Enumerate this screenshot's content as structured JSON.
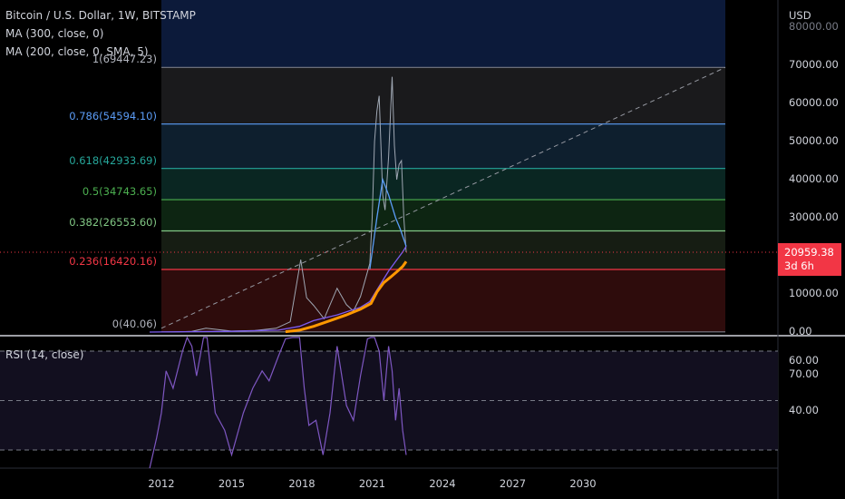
{
  "header": {
    "symbol_line": "Bitcoin / U.S. Dollar, 1W, BITSTAMP",
    "indicator_1": "MA (300, close, 0)",
    "indicator_2": "MA (200, close, 0, SMA, 5)"
  },
  "price_axis": {
    "currency": "USD",
    "ticks": [
      "80000.00",
      "70000.00",
      "60000.00",
      "50000.00",
      "40000.00",
      "30000.00",
      "20000.00",
      "10000.00",
      "0.00"
    ],
    "tick_values": [
      80000,
      70000,
      60000,
      50000,
      40000,
      30000,
      20000,
      10000,
      0
    ]
  },
  "last_price": {
    "value": "20959.38",
    "countdown": "3d 6h"
  },
  "fib_levels": [
    {
      "label": "1(69447.23)",
      "value": 69447.23,
      "color": "#787b86",
      "fill": "#1a1a1c"
    },
    {
      "label": "0.786(54594.10)",
      "value": 54594.1,
      "color": "#5b9cf6",
      "fill": "#0e1f2e"
    },
    {
      "label": "0.618(42933.69)",
      "value": 42933.69,
      "color": "#26a69a",
      "fill": "#0a2622"
    },
    {
      "label": "0.5(34743.65)",
      "value": 34743.65,
      "color": "#4caf50",
      "fill": "#0d2512"
    },
    {
      "label": "0.382(26553.60)",
      "value": 26553.6,
      "color": "#81c784",
      "fill": "#161d13"
    },
    {
      "label": "0.236(16420.16)",
      "value": 16420.16,
      "color": "#f23645",
      "fill": "#2e0c0c"
    },
    {
      "label": "0(40.06)",
      "value": 40.06,
      "color": "#787b86",
      "fill": ""
    }
  ],
  "rsi": {
    "label": "RSI (14, close)",
    "ticks": [
      "60.00",
      "40.00"
    ],
    "tick_values": [
      60,
      40
    ],
    "bands": [
      70,
      50,
      30
    ]
  },
  "time_axis": {
    "labels": [
      "2012",
      "2015",
      "2018",
      "2021",
      "2024",
      "2027",
      "2030"
    ],
    "years": [
      2012,
      2015,
      2018,
      2021,
      2024,
      2027,
      2030
    ]
  },
  "chart_data": {
    "type": "line",
    "title": "Bitcoin / U.S. Dollar, 1W, BITSTAMP",
    "ylim": [
      0,
      85000
    ],
    "xlim": [
      2011.0,
      2031.0
    ],
    "series": [
      {
        "name": "",
        "color": "#9fa7b3",
        "x": [
          2011.5,
          2012.5,
          2013.3,
          2013.9,
          2014.5,
          2015.0,
          2016.0,
          2016.9,
          2017.5,
          2017.95,
          2018.2,
          2018.5,
          2018.95,
          2019.5,
          2019.9,
          2020.2,
          2020.5,
          2020.9,
          2021.0,
          2021.1,
          2021.2,
          2021.3,
          2021.45,
          2021.55,
          2021.7,
          2021.85,
          2021.95,
          2022.05,
          2022.15,
          2022.25,
          2022.35,
          2022.45
        ],
        "y": [
          10,
          10,
          200,
          1000,
          600,
          250,
          420,
          1000,
          2700,
          19000,
          9000,
          7000,
          3500,
          11500,
          7200,
          5500,
          9300,
          18000,
          30000,
          50000,
          58000,
          62000,
          36000,
          32000,
          46000,
          67000,
          49000,
          40000,
          44000,
          45000,
          30000,
          20959
        ]
      },
      {
        "name": "MA (300, close, 0)",
        "color": "#7b5cf0",
        "x": [
          2011.5,
          2013.0,
          2015.0,
          2017.0,
          2017.9,
          2018.5,
          2019.5,
          2020.5,
          2020.9,
          2021.3,
          2021.7,
          2022.0,
          2022.3,
          2022.45
        ],
        "y": [
          0,
          100,
          200,
          500,
          1500,
          3000,
          4500,
          6500,
          8000,
          12000,
          16000,
          18500,
          21000,
          22500
        ]
      },
      {
        "name": "MA (200, close, 0, SMA, 5)",
        "color": "#ff9800",
        "x": [
          2017.3,
          2017.9,
          2018.5,
          2019.2,
          2019.9,
          2020.5,
          2020.95,
          2021.2,
          2021.5,
          2021.8,
          2022.05,
          2022.3,
          2022.45
        ],
        "y": [
          100,
          500,
          1500,
          3000,
          4500,
          6000,
          7500,
          10500,
          13000,
          14500,
          15800,
          17200,
          18500
        ]
      },
      {
        "name": "",
        "color": "#5b9cf6",
        "x": [
          2020.9,
          2021.2,
          2021.45,
          2021.7,
          2022.0,
          2022.2,
          2022.45
        ],
        "y": [
          16500,
          30000,
          40000,
          36000,
          30000,
          27000,
          22500
        ]
      }
    ],
    "rsi_series": {
      "x": [
        2011.5,
        2011.8,
        2012.0,
        2012.2,
        2012.5,
        2012.9,
        2013.1,
        2013.3,
        2013.5,
        2013.8,
        2013.95,
        2014.3,
        2014.7,
        2015.0,
        2015.5,
        2015.9,
        2016.3,
        2016.6,
        2017.0,
        2017.3,
        2017.6,
        2017.9,
        2018.1,
        2018.3,
        2018.6,
        2018.9,
        2019.2,
        2019.5,
        2019.9,
        2020.2,
        2020.5,
        2020.8,
        2020.95,
        2021.1,
        2021.3,
        2021.5,
        2021.7,
        2021.85,
        2022.0,
        2022.15,
        2022.3,
        2022.45
      ],
      "y": [
        20,
        35,
        45,
        62,
        55,
        70,
        90,
        72,
        60,
        85,
        88,
        45,
        38,
        28,
        45,
        55,
        62,
        58,
        68,
        75,
        82,
        88,
        55,
        40,
        42,
        28,
        45,
        72,
        48,
        42,
        60,
        75,
        90,
        85,
        70,
        50,
        72,
        62,
        42,
        55,
        38,
        28
      ]
    },
    "trend_line": {
      "x": [
        2012.0,
        2023.1,
        2029.8
      ],
      "y": [
        1000,
        69447,
        69447
      ],
      "dashed_to": [
        2029.8,
        69447
      ]
    }
  }
}
